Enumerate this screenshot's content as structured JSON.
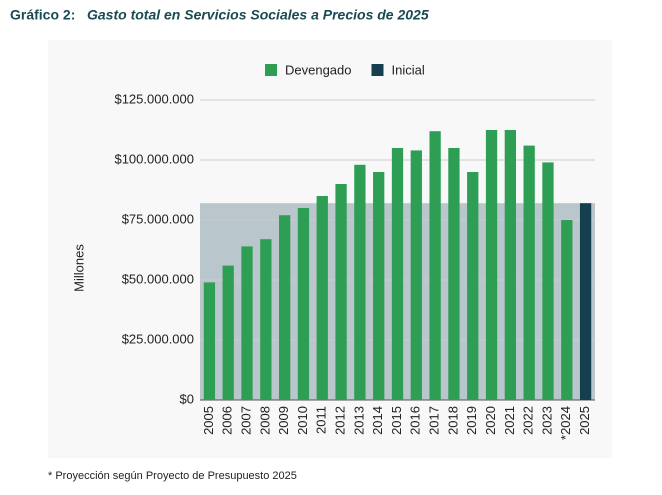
{
  "chart_data": {
    "type": "bar",
    "title_label": "Gráfico 2:",
    "title": "Gasto total en Servicios Sociales a Precios de 2025",
    "y_label": "Millones",
    "footnote": "* Proyección según Proyecto de Presupuesto 2025",
    "categories": [
      "2005",
      "2006",
      "2007",
      "2008",
      "2009",
      "2010",
      "2011",
      "2012",
      "2013",
      "2014",
      "2015",
      "2016",
      "2017",
      "2018",
      "2019",
      "2020",
      "2021",
      "2022",
      "2023",
      "*2024",
      "2025"
    ],
    "series": [
      {
        "name": "Devengado",
        "color": "#2e9e55",
        "values": [
          49000000,
          56000000,
          64000000,
          67000000,
          77000000,
          80000000,
          85000000,
          90000000,
          98000000,
          95000000,
          105000000,
          104000000,
          112000000,
          105000000,
          95000000,
          112500000,
          112500000,
          106000000,
          99000000,
          75000000,
          null
        ]
      },
      {
        "name": "Inicial",
        "color": "#153f4f",
        "values": [
          null,
          null,
          null,
          null,
          null,
          null,
          null,
          null,
          null,
          null,
          null,
          null,
          null,
          null,
          null,
          null,
          null,
          null,
          null,
          null,
          82000000
        ]
      }
    ],
    "reference_band": 82000000,
    "band_color": "#b9c6cb",
    "ylim": [
      0,
      125000000
    ],
    "yticks": [
      {
        "value": 0,
        "label": "$0"
      },
      {
        "value": 25000000,
        "label": "$25.000.000"
      },
      {
        "value": 50000000,
        "label": "$50.000.000"
      },
      {
        "value": 75000000,
        "label": "$75.000.000"
      },
      {
        "value": 100000000,
        "label": "$100.000.000"
      },
      {
        "value": 125000000,
        "label": "$125.000.000"
      }
    ],
    "grid": true,
    "legend": "top"
  }
}
